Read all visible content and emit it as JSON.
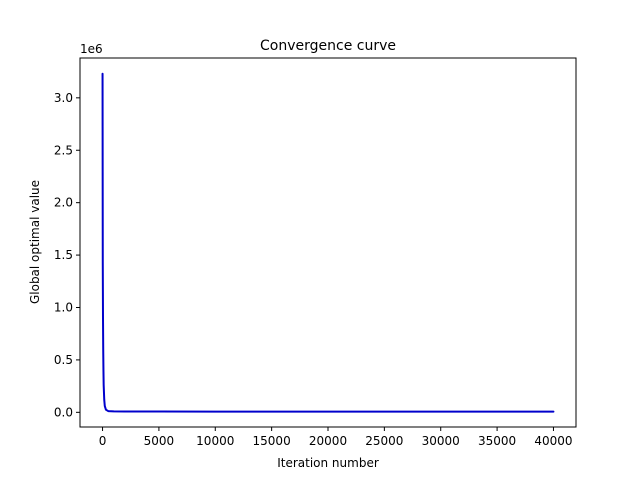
{
  "chart_data": {
    "type": "line",
    "title": "Convergence curve",
    "xlabel": "Iteration number",
    "ylabel": "Global optimal value",
    "y_offset_label": "1e6",
    "xlim": [
      -2000,
      42000
    ],
    "ylim": [
      -140000,
      3380000
    ],
    "x_ticks": [
      0,
      5000,
      10000,
      15000,
      20000,
      25000,
      30000,
      35000,
      40000
    ],
    "x_tick_labels": [
      "0",
      "5000",
      "10000",
      "15000",
      "20000",
      "25000",
      "30000",
      "35000",
      "40000"
    ],
    "y_ticks": [
      0,
      500000,
      1000000,
      1500000,
      2000000,
      2500000,
      3000000
    ],
    "y_tick_labels": [
      "0.0",
      "0.5",
      "1.0",
      "1.5",
      "2.0",
      "2.5",
      "3.0"
    ],
    "grid": false,
    "series": [
      {
        "color": "#0000cc",
        "x": [
          0,
          10,
          20,
          40,
          60,
          80,
          100,
          150,
          200,
          300,
          500,
          1000,
          2000,
          5000,
          10000,
          20000,
          30000,
          40000
        ],
        "y": [
          3230000,
          2300000,
          1430000,
          900000,
          600000,
          400000,
          260000,
          120000,
          60000,
          25000,
          12000,
          9000,
          8000,
          7500,
          7200,
          7000,
          6900,
          6800
        ]
      }
    ]
  }
}
